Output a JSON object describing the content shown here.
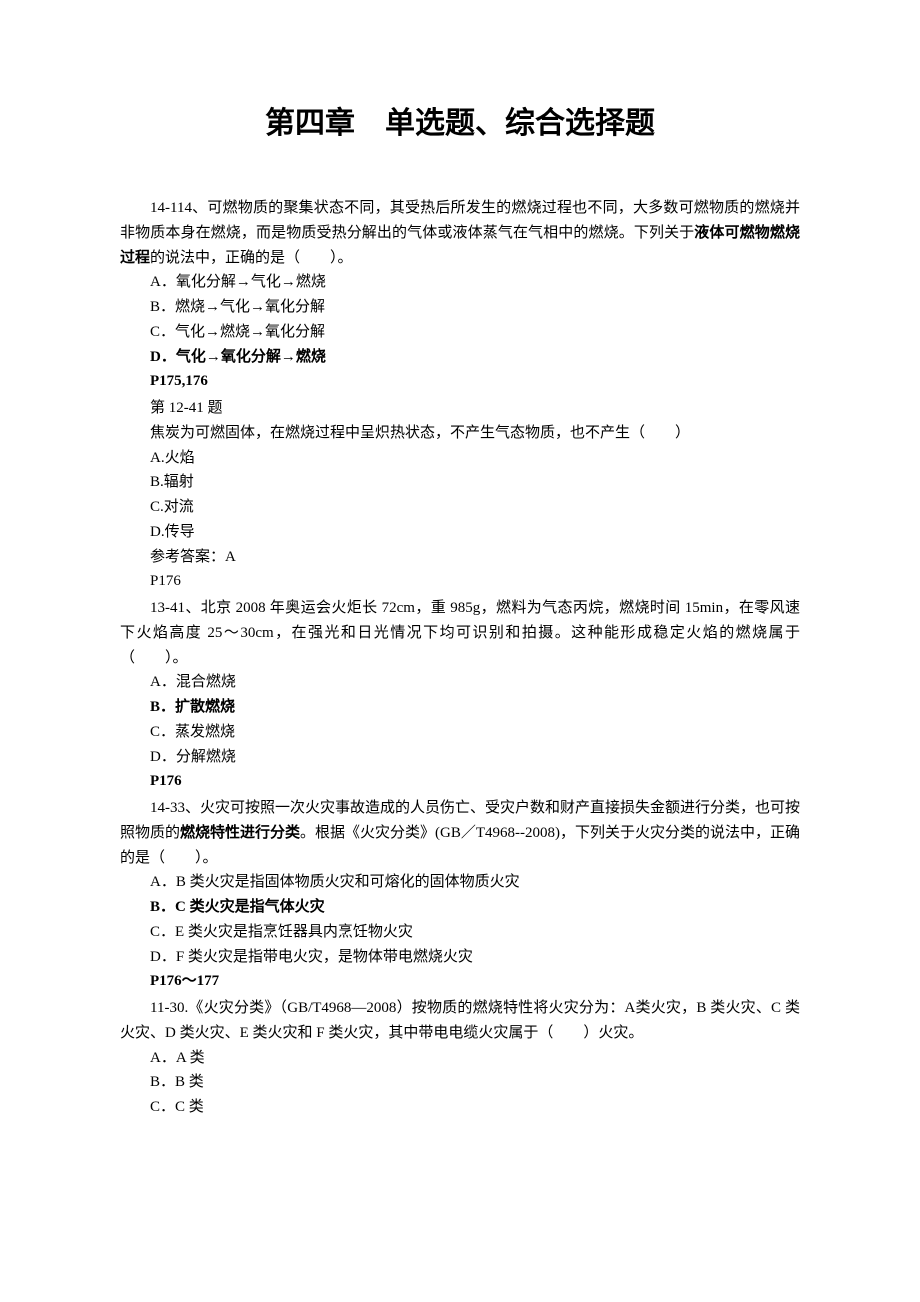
{
  "title": "第四章　单选题、综合选择题",
  "q1": {
    "stem_p1": "14-114、可燃物质的聚集状态不同，其受热后所发生的燃烧过程也不同，大多数可燃物质的燃烧并非物质本身在燃烧，而是物质受热分解出的气体或液体蒸气在气相中的燃烧。下列关于",
    "stem_bold": "液体可燃物燃烧过程",
    "stem_p2": "的说法中，正确的是（　　）。",
    "opt_a": "A．氧化分解→气化→燃烧",
    "opt_b": "B．燃烧→气化→氧化分解",
    "opt_c": "C．气化→燃烧→氧化分解",
    "opt_d": "D．气化→氧化分解→燃烧",
    "ref": "P175,176"
  },
  "q2": {
    "header": "第 12-41 题",
    "stem": "焦炭为可燃固体，在燃烧过程中呈炽热状态，不产生气态物质，也不产生（　　）",
    "opt_a": "A.火焰",
    "opt_b": "B.辐射",
    "opt_c": "C.对流",
    "opt_d": "D.传导",
    "answer": "参考答案：A",
    "ref": "P176"
  },
  "q3": {
    "stem": "13-41、北京 2008 年奥运会火炬长 72cm，重 985g，燃料为气态丙烷，燃烧时间 15min，在零风速下火焰高度 25～30cm，在强光和日光情况下均可识别和拍摄。这种能形成稳定火焰的燃烧属于（　　）。",
    "opt_a": "A．混合燃烧",
    "opt_b": "B．扩散燃烧",
    "opt_c": "C．蒸发燃烧",
    "opt_d": "D．分解燃烧",
    "ref": "P176"
  },
  "q4": {
    "stem_p1": "14-33、火灾可按照一次火灾事故造成的人员伤亡、受灾户数和财产直接损失金额进行分类，也可按照物质的",
    "stem_bold": "燃烧特性进行分类",
    "stem_p2": "。根据《火灾分类》(GB／T4968--2008)，下列关于火灾分类的说法中，正确的是（　　）。",
    "opt_a": "A．B 类火灾是指固体物质火灾和可熔化的固体物质火灾",
    "opt_b": "B．C 类火灾是指气体火灾",
    "opt_c": "C．E 类火灾是指烹饪器具内烹饪物火灾",
    "opt_d": "D．F 类火灾是指带电火灾，是物体带电燃烧火灾",
    "ref": "P176～177"
  },
  "q5": {
    "stem": "11-30.《火灾分类》（GB/T4968—2008）按物质的燃烧特性将火灾分为：A类火灾，B 类火灾、C 类火灾、D 类火灾、E 类火灾和 F 类火灾，其中带电电缆火灾属于（　　）火灾。",
    "opt_a": "A．A 类",
    "opt_b": "B．B 类",
    "opt_c": "C．C 类"
  }
}
